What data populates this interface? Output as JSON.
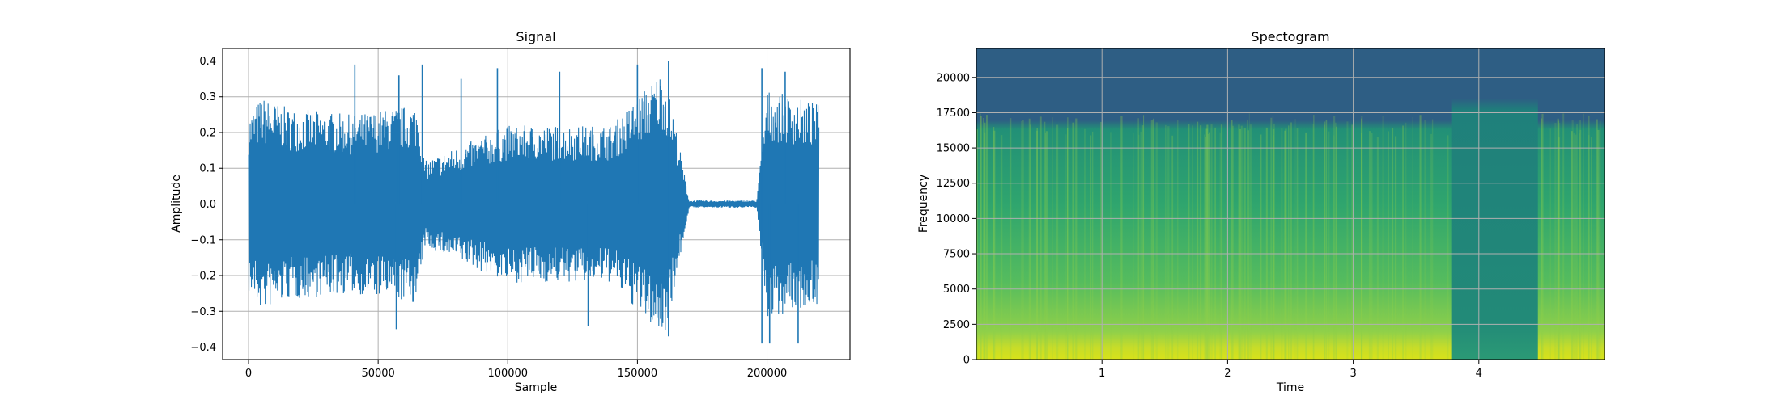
{
  "chart_data": [
    {
      "type": "line",
      "title": "Signal",
      "xlabel": "Sample",
      "ylabel": "Amplitude",
      "xlim": [
        -10000,
        232000
      ],
      "ylim": [
        -0.435,
        0.435
      ],
      "xticks": [
        0,
        50000,
        100000,
        150000,
        200000
      ],
      "xtick_labels": [
        "0",
        "50000",
        "100000",
        "150000",
        "200000"
      ],
      "yticks": [
        -0.4,
        -0.3,
        -0.2,
        -0.1,
        0.0,
        0.1,
        0.2,
        0.3,
        0.4
      ],
      "ytick_labels": [
        "−0.4",
        "−0.3",
        "−0.2",
        "−0.1",
        "0.0",
        "0.1",
        "0.2",
        "0.3",
        "0.4"
      ],
      "grid": true,
      "line_color": "#1f77b4",
      "envelope": {
        "x": [
          0,
          5000,
          15000,
          40000,
          65000,
          68000,
          100000,
          140000,
          160000,
          164000,
          170000,
          196000,
          200000,
          220000
        ],
        "amplitude": [
          0.25,
          0.3,
          0.27,
          0.25,
          0.28,
          0.12,
          0.22,
          0.22,
          0.38,
          0.25,
          0.01,
          0.01,
          0.32,
          0.28
        ]
      },
      "peaks": [
        {
          "x": 41000,
          "y": 0.39
        },
        {
          "x": 67000,
          "y": 0.39
        },
        {
          "x": 96000,
          "y": 0.38
        },
        {
          "x": 120000,
          "y": 0.37
        },
        {
          "x": 150000,
          "y": 0.39
        },
        {
          "x": 162000,
          "y": 0.4
        },
        {
          "x": 198000,
          "y": 0.38
        },
        {
          "x": 207000,
          "y": 0.37
        },
        {
          "x": 58000,
          "y": 0.36
        },
        {
          "x": 82000,
          "y": 0.35
        },
        {
          "x": 131000,
          "y": -0.34
        },
        {
          "x": 57000,
          "y": -0.35
        },
        {
          "x": 162000,
          "y": -0.37
        },
        {
          "x": 198000,
          "y": -0.39
        },
        {
          "x": 201000,
          "y": -0.39
        },
        {
          "x": 212000,
          "y": -0.39
        }
      ]
    },
    {
      "type": "heatmap",
      "title": "Spectogram",
      "xlabel": "Time",
      "ylabel": "Frequency",
      "xlim": [
        0,
        5
      ],
      "ylim": [
        0,
        22050
      ],
      "xticks": [
        1,
        2,
        3,
        4
      ],
      "xtick_labels": [
        "1",
        "2",
        "3",
        "4"
      ],
      "yticks": [
        0,
        2500,
        5000,
        7500,
        10000,
        12500,
        15000,
        17500,
        20000
      ],
      "ytick_labels": [
        "0",
        "2500",
        "5000",
        "7500",
        "10000",
        "12500",
        "15000",
        "17500",
        "20000"
      ],
      "grid": true,
      "colormap": [
        "#2e5e84",
        "#25777f",
        "#1f8f7a",
        "#2aa771",
        "#5bbf5a",
        "#9ad23e",
        "#d8e219"
      ],
      "cutoff_hz": 17000,
      "quiet_segments": [
        [
          3.78,
          4.47
        ]
      ],
      "quiet_cutoff_hz": 18500
    }
  ]
}
